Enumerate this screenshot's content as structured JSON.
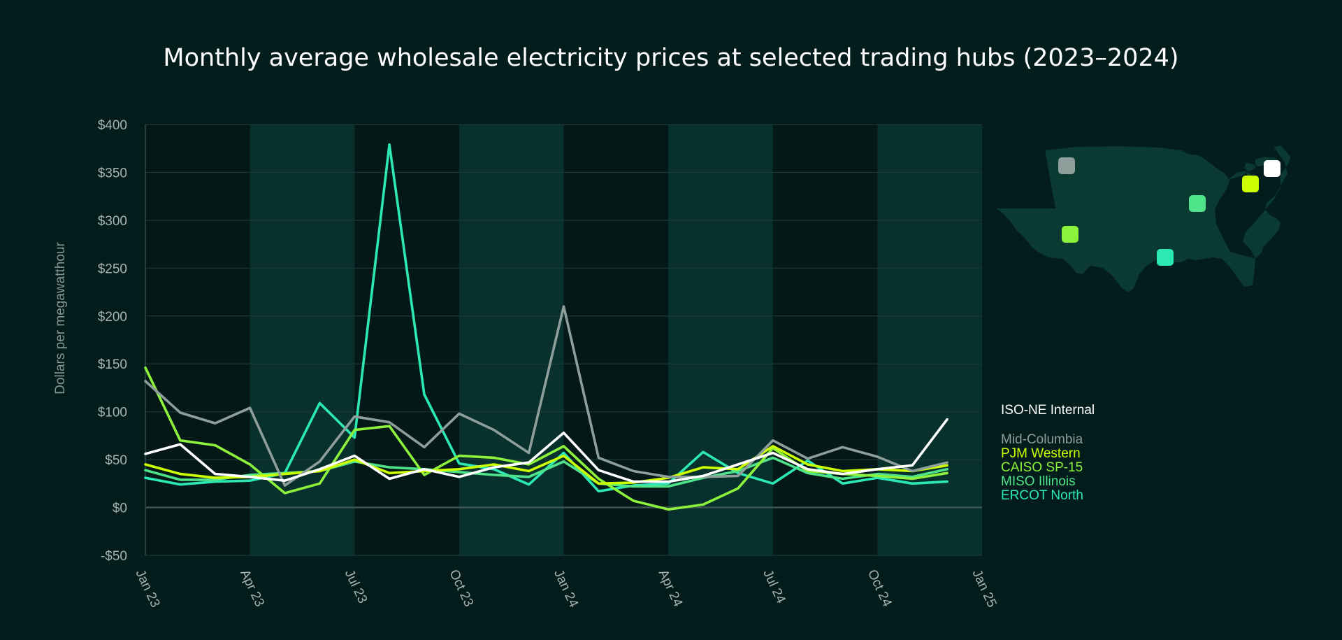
{
  "chart_data": {
    "type": "line",
    "title": "Monthly average wholesale electricity prices at selected trading hubs (2023–2024)",
    "ylabel": "Dollars per megawatthour",
    "xlabel": "",
    "ylim": [
      -50,
      400
    ],
    "xlim": [
      "2023-01",
      "2025-01"
    ],
    "yticks": [
      {
        "value": 400,
        "label": "$400"
      },
      {
        "value": 350,
        "label": "$350"
      },
      {
        "value": 300,
        "label": "$300"
      },
      {
        "value": 250,
        "label": "$250"
      },
      {
        "value": 200,
        "label": "$200"
      },
      {
        "value": 150,
        "label": "$150"
      },
      {
        "value": 100,
        "label": "$100"
      },
      {
        "value": 50,
        "label": "$50"
      },
      {
        "value": 0,
        "label": "$0"
      },
      {
        "value": -50,
        "label": "-$50"
      }
    ],
    "xticks": [
      {
        "date": "2023-01",
        "label": "Jan 23"
      },
      {
        "date": "2023-04",
        "label": "Apr 23"
      },
      {
        "date": "2023-07",
        "label": "Jul 23"
      },
      {
        "date": "2023-10",
        "label": "Oct 23"
      },
      {
        "date": "2024-01",
        "label": "Jan 24"
      },
      {
        "date": "2024-04",
        "label": "Apr 24"
      },
      {
        "date": "2024-07",
        "label": "Jul 24"
      },
      {
        "date": "2024-10",
        "label": "Oct 24"
      },
      {
        "date": "2025-01",
        "label": "Jan 25"
      }
    ],
    "shaded_quarters": [
      "2023-04",
      "2023-10",
      "2024-04",
      "2024-10"
    ],
    "grid": true,
    "legend_position": "right",
    "x": [
      "2023-01",
      "2023-02",
      "2023-03",
      "2023-04",
      "2023-05",
      "2023-06",
      "2023-07",
      "2023-08",
      "2023-09",
      "2023-10",
      "2023-11",
      "2023-12",
      "2024-01",
      "2024-02",
      "2024-03",
      "2024-04",
      "2024-05",
      "2024-06",
      "2024-07",
      "2024-08",
      "2024-09",
      "2024-10",
      "2024-11",
      "2024-12"
    ],
    "series": [
      {
        "name": "ISO-NE Internal",
        "color": "#ffffff",
        "values": [
          56,
          66,
          35,
          32,
          28,
          40,
          54,
          30,
          40,
          32,
          42,
          47,
          78,
          39,
          27,
          27,
          33,
          45,
          57,
          40,
          35,
          40,
          44,
          92
        ]
      },
      {
        "name": "Mid-Columbia",
        "color": "#8e9e9b",
        "values": [
          132,
          99,
          88,
          104,
          23,
          48,
          95,
          89,
          63,
          98,
          81,
          57,
          210,
          52,
          38,
          32,
          32,
          33,
          70,
          51,
          63,
          53,
          38,
          47
        ]
      },
      {
        "name": "PJM Western",
        "color": "#ccff00",
        "values": [
          45,
          35,
          31,
          32,
          35,
          38,
          50,
          36,
          38,
          40,
          45,
          38,
          54,
          25,
          26,
          31,
          42,
          40,
          64,
          45,
          38,
          40,
          38,
          44
        ]
      },
      {
        "name": "CAISO SP-15",
        "color": "#8cf23c",
        "values": [
          146,
          70,
          65,
          45,
          15,
          25,
          81,
          85,
          34,
          54,
          52,
          45,
          64,
          30,
          7,
          -2,
          3,
          20,
          62,
          38,
          35,
          33,
          30,
          36
        ]
      },
      {
        "name": "MISO Illinois",
        "color": "#4fe38a",
        "values": [
          39,
          29,
          29,
          34,
          36,
          38,
          48,
          42,
          40,
          37,
          34,
          32,
          48,
          25,
          22,
          22,
          31,
          38,
          52,
          36,
          30,
          35,
          32,
          40
        ]
      },
      {
        "name": "ERCOT North",
        "color": "#2be8b4",
        "values": [
          31,
          24,
          27,
          28,
          36,
          109,
          73,
          379,
          118,
          46,
          40,
          24,
          57,
          17,
          23,
          25,
          58,
          36,
          25,
          49,
          25,
          31,
          25,
          27
        ]
      }
    ],
    "map": {
      "markers": [
        {
          "hub": "Mid-Columbia",
          "color": "#8e9e9b"
        },
        {
          "hub": "CAISO SP-15",
          "color": "#8cf23c"
        },
        {
          "hub": "ERCOT North",
          "color": "#2be8b4"
        },
        {
          "hub": "MISO Illinois",
          "color": "#4fe38a"
        },
        {
          "hub": "PJM Western",
          "color": "#ccff00"
        },
        {
          "hub": "ISO-NE Internal",
          "color": "#ffffff"
        }
      ]
    }
  }
}
